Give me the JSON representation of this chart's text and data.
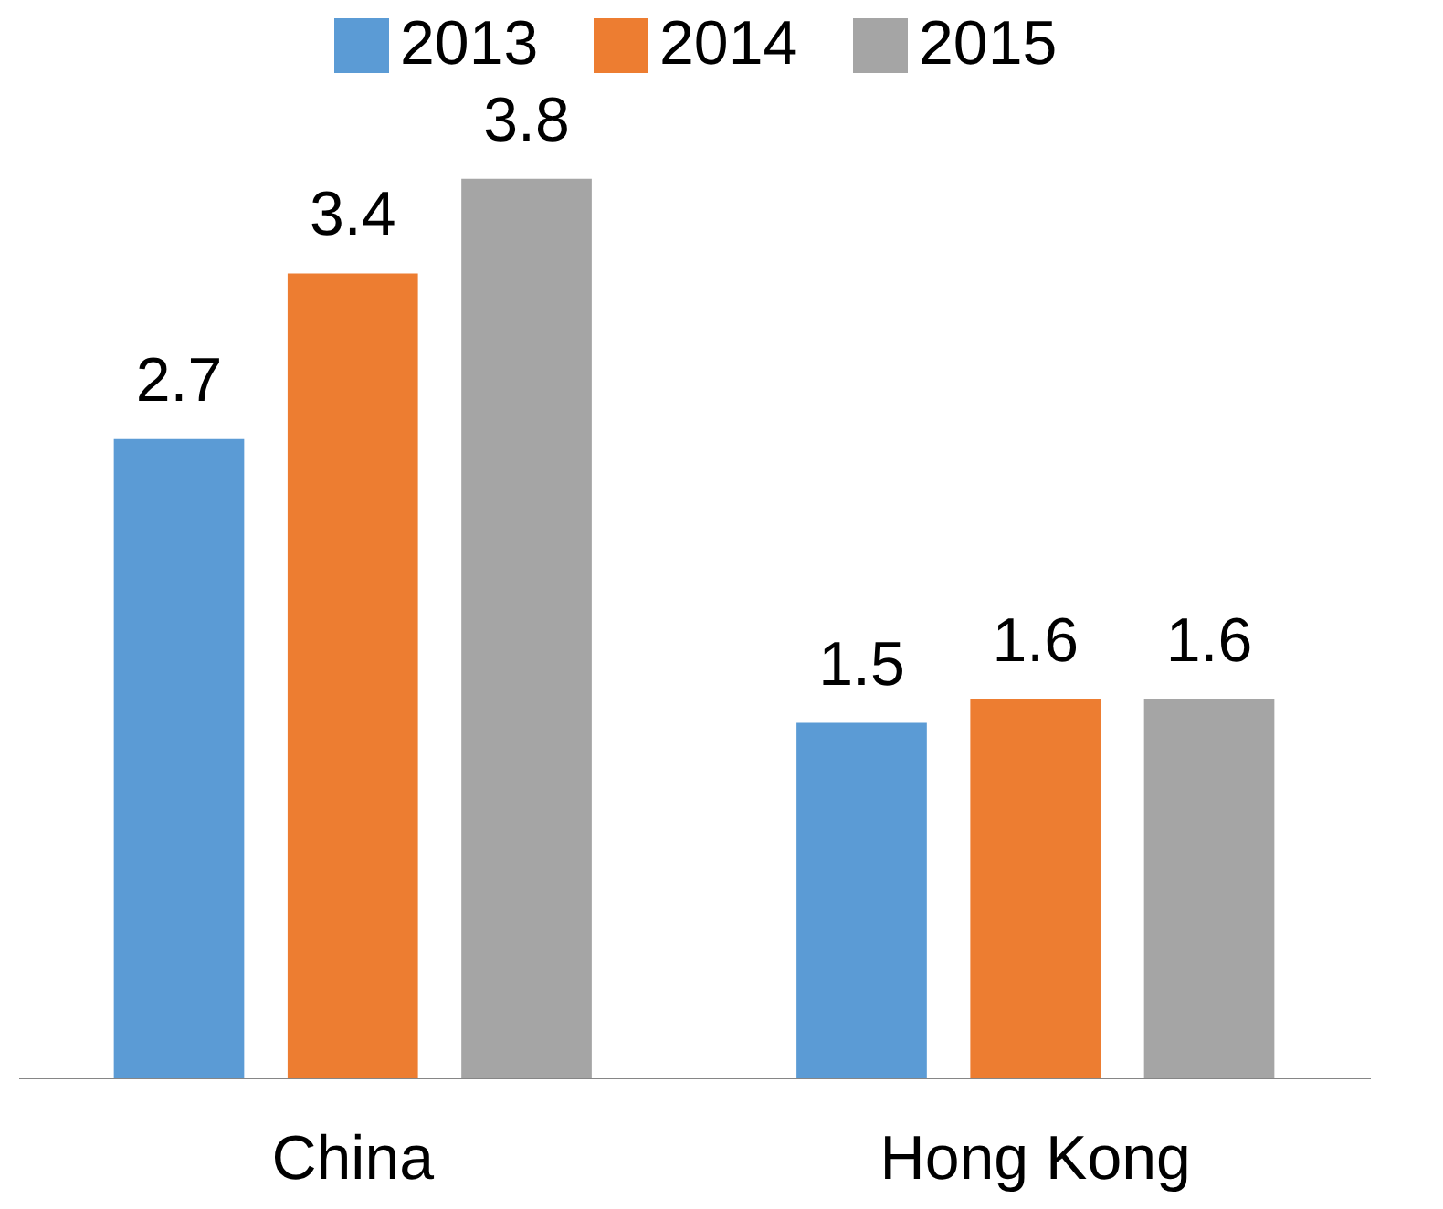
{
  "chart_data": {
    "type": "bar",
    "categories": [
      "China",
      "Hong Kong"
    ],
    "series": [
      {
        "name": "2013",
        "color": "#5b9bd5",
        "values": [
          2.7,
          1.5
        ]
      },
      {
        "name": "2014",
        "color": "#ed7d31",
        "values": [
          3.4,
          1.6
        ]
      },
      {
        "name": "2015",
        "color": "#a5a5a5",
        "values": [
          3.8,
          1.6
        ]
      }
    ],
    "data_labels": true,
    "legend": "top",
    "tick_labels": "x"
  }
}
